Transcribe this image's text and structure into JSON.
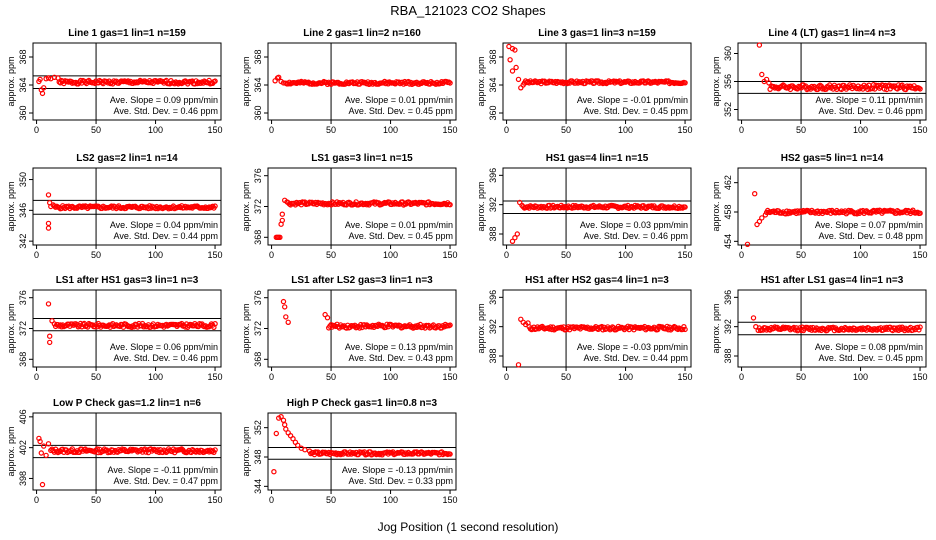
{
  "figure": {
    "title": "RBA_121023  CO2 Shapes",
    "xlabel": "Jog Position (1 second resolution)"
  },
  "chart_data": [
    {
      "type": "scatter",
      "title": "Line 1 gas=1 lin=1 n=159",
      "ylabel": "approx. ppm",
      "xlim": [
        -3,
        155
      ],
      "ylim": [
        359,
        370
      ],
      "xticks": [
        0,
        50,
        100,
        150
      ],
      "yticks": [
        360,
        364,
        368
      ],
      "hlines": [
        365.3,
        363.5
      ],
      "vline": 50,
      "base": 364.4,
      "noise": 0.25,
      "seed": 1,
      "slope_text": "Ave. Slope = 0.09  ppm/min",
      "std_text": "Ave. Std. Dev. = 0.46  ppm",
      "early": [
        [
          2,
          364.5
        ],
        [
          3,
          364.8
        ],
        [
          4,
          363.3
        ],
        [
          5,
          362.8
        ],
        [
          6,
          363.6
        ],
        [
          8,
          364.9
        ],
        [
          10,
          365.0
        ],
        [
          12,
          364.9
        ],
        [
          15,
          365.1
        ],
        [
          18,
          365.0
        ]
      ]
    },
    {
      "type": "scatter",
      "title": "Line 2 gas=1 lin=2 n=160",
      "ylabel": "approx. ppm",
      "xlim": [
        -3,
        155
      ],
      "ylim": [
        359,
        370
      ],
      "xticks": [
        0,
        50,
        100,
        150
      ],
      "yticks": [
        360,
        364,
        368
      ],
      "hlines": [],
      "vline": 50,
      "base": 364.3,
      "noise": 0.2,
      "seed": 2,
      "slope_text": "Ave. Slope = 0.01  ppm/min",
      "std_text": "Ave. Std. Dev. = 0.45  ppm",
      "early": [
        [
          3,
          364.6
        ],
        [
          5,
          365.0
        ],
        [
          6,
          365.1
        ],
        [
          8,
          364.5
        ],
        [
          10,
          364.3
        ]
      ]
    },
    {
      "type": "scatter",
      "title": "Line 3 gas=1 lin=3 n=159",
      "ylabel": "approx. ppm",
      "xlim": [
        -3,
        155
      ],
      "ylim": [
        359,
        370
      ],
      "xticks": [
        0,
        50,
        100,
        150
      ],
      "yticks": [
        360,
        364,
        368
      ],
      "hlines": [],
      "vline": 50,
      "base": 364.4,
      "noise": 0.2,
      "seed": 3,
      "slope_text": "Ave. Slope = -0.01  ppm/min",
      "std_text": "Ave. Std. Dev. = 0.45  ppm",
      "early": [
        [
          2,
          369.5
        ],
        [
          5,
          369.2
        ],
        [
          7,
          369.0
        ],
        [
          3,
          367.6
        ],
        [
          5,
          366.0
        ],
        [
          8,
          366.5
        ],
        [
          10,
          364.8
        ],
        [
          12,
          363.6
        ],
        [
          14,
          364.0
        ]
      ]
    },
    {
      "type": "scatter",
      "title": "Line 4 (LT) gas=1 lin=4 n=3",
      "ylabel": "approx. ppm",
      "xlim": [
        -3,
        155
      ],
      "ylim": [
        350.5,
        361.5
      ],
      "xticks": [
        0,
        50,
        100,
        150
      ],
      "yticks": [
        352,
        356,
        360
      ],
      "hlines": [
        356.0,
        354.3
      ],
      "vline": 50,
      "base": 355.2,
      "noise": 0.35,
      "seed": 4,
      "slope_text": "Ave. Slope = 0.11  ppm/min",
      "std_text": "Ave. Std. Dev. = 0.46  ppm",
      "early": [
        [
          15,
          361.2
        ],
        [
          17,
          357.0
        ],
        [
          19,
          356.0
        ],
        [
          21,
          356.3
        ],
        [
          23,
          355.8
        ]
      ]
    },
    {
      "type": "scatter",
      "title": "LS2 gas=2 lin=1 n=14",
      "ylabel": "approx. ppm",
      "xlim": [
        -3,
        155
      ],
      "ylim": [
        341.5,
        351.5
      ],
      "xticks": [
        0,
        50,
        100,
        150
      ],
      "yticks": [
        342,
        346,
        350
      ],
      "hlines": [
        347.3,
        345.5
      ],
      "vline": 50,
      "base": 346.4,
      "noise": 0.2,
      "seed": 5,
      "slope_text": "Ave. Slope = 0.04  ppm/min",
      "std_text": "Ave. Std. Dev. = 0.44  ppm",
      "early": [
        [
          10,
          348.0
        ],
        [
          11,
          347.0
        ],
        [
          10,
          344.3
        ],
        [
          10,
          343.7
        ],
        [
          12,
          346.5
        ],
        [
          14,
          346.7
        ]
      ]
    },
    {
      "type": "scatter",
      "title": "LS1 gas=3 lin=1 n=15",
      "ylabel": "approx. ppm",
      "xlim": [
        -3,
        155
      ],
      "ylim": [
        367,
        377
      ],
      "xticks": [
        0,
        50,
        100,
        150
      ],
      "yticks": [
        368,
        372,
        376
      ],
      "hlines": [],
      "vline": 50,
      "base": 372.4,
      "noise": 0.2,
      "seed": 6,
      "slope_text": "Ave. Slope = 0.01  ppm/min",
      "std_text": "Ave. Std. Dev. = 0.45  ppm",
      "early": [
        [
          4,
          368.0
        ],
        [
          5,
          368.0
        ],
        [
          6,
          368.0
        ],
        [
          7,
          368.0
        ],
        [
          8,
          369.7
        ],
        [
          9,
          370.2
        ],
        [
          9,
          371.0
        ],
        [
          11,
          372.8
        ],
        [
          13,
          372.6
        ]
      ]
    },
    {
      "type": "scatter",
      "title": "HS1 gas=4 lin=1 n=15",
      "ylabel": "approx. ppm",
      "xlim": [
        -3,
        155
      ],
      "ylim": [
        386.5,
        397
      ],
      "xticks": [
        0,
        50,
        100,
        150
      ],
      "yticks": [
        388,
        392,
        396
      ],
      "hlines": [
        392.5,
        390.8
      ],
      "vline": 50,
      "base": 391.7,
      "noise": 0.2,
      "seed": 7,
      "slope_text": "Ave. Slope = 0.03  ppm/min",
      "std_text": "Ave. Std. Dev. = 0.46  ppm",
      "early": [
        [
          5,
          387.0
        ],
        [
          7,
          387.5
        ],
        [
          9,
          388.0
        ],
        [
          11,
          392.3
        ],
        [
          13,
          391.9
        ]
      ]
    },
    {
      "type": "scatter",
      "title": "HS2 gas=5 lin=1 n=14",
      "ylabel": "approx. ppm",
      "xlim": [
        -3,
        155
      ],
      "ylim": [
        453.5,
        464
      ],
      "xticks": [
        0,
        50,
        100,
        150
      ],
      "yticks": [
        454,
        458,
        462
      ],
      "hlines": [],
      "vline": 50,
      "base": 458.0,
      "noise": 0.25,
      "seed": 8,
      "slope_text": "Ave. Slope = 0.07  ppm/min",
      "std_text": "Ave. Std. Dev. = 0.48  ppm",
      "early": [
        [
          5,
          453.6
        ],
        [
          11,
          460.5
        ],
        [
          13,
          456.3
        ],
        [
          15,
          456.7
        ],
        [
          17,
          457.2
        ],
        [
          20,
          457.6
        ]
      ]
    },
    {
      "type": "scatter",
      "title": "LS1 after HS1 gas=3 lin=1 n=3",
      "ylabel": "approx. ppm",
      "xlim": [
        -3,
        155
      ],
      "ylim": [
        367,
        377
      ],
      "xticks": [
        0,
        50,
        100,
        150
      ],
      "yticks": [
        368,
        372,
        376
      ],
      "hlines": [
        373.3,
        371.7
      ],
      "vline": 50,
      "base": 372.4,
      "noise": 0.25,
      "seed": 9,
      "slope_text": "Ave. Slope = 0.06  ppm/min",
      "std_text": "Ave. Std. Dev. = 0.46  ppm",
      "early": [
        [
          10,
          375.2
        ],
        [
          11,
          371.0
        ],
        [
          11,
          370.2
        ],
        [
          13,
          373.0
        ],
        [
          15,
          372.6
        ]
      ]
    },
    {
      "type": "scatter",
      "title": "LS1 after LS2 gas=3 lin=1 n=3",
      "ylabel": "approx. ppm",
      "xlim": [
        -3,
        155
      ],
      "ylim": [
        367,
        377
      ],
      "xticks": [
        0,
        50,
        100,
        150
      ],
      "yticks": [
        368,
        372,
        376
      ],
      "hlines": [],
      "vline": 50,
      "base": 372.3,
      "noise": 0.25,
      "seed": 10,
      "slope_text": "Ave. Slope = 0.13  ppm/min",
      "std_text": "Ave. Std. Dev. = 0.43  ppm",
      "early": [
        [
          10,
          375.5
        ],
        [
          11,
          374.8
        ],
        [
          12,
          373.5
        ],
        [
          14,
          372.8
        ],
        [
          45,
          373.8
        ],
        [
          47,
          373.4
        ]
      ]
    },
    {
      "type": "scatter",
      "title": "HS1 after HS2 gas=4 lin=1 n=3",
      "ylabel": "approx. ppm",
      "xlim": [
        -3,
        155
      ],
      "ylim": [
        386.5,
        397
      ],
      "xticks": [
        0,
        50,
        100,
        150
      ],
      "yticks": [
        388,
        392,
        396
      ],
      "hlines": [],
      "vline": 50,
      "base": 391.8,
      "noise": 0.25,
      "seed": 11,
      "slope_text": "Ave. Slope = -0.03  ppm/min",
      "std_text": "Ave. Std. Dev. = 0.44  ppm",
      "early": [
        [
          10,
          386.8
        ],
        [
          12,
          393.0
        ],
        [
          14,
          392.6
        ],
        [
          16,
          392.3
        ],
        [
          18,
          392.5
        ]
      ]
    },
    {
      "type": "scatter",
      "title": "HS1 after LS1 gas=4 lin=1 n=3",
      "ylabel": "approx. ppm",
      "xlim": [
        -3,
        155
      ],
      "ylim": [
        386.5,
        397
      ],
      "xticks": [
        0,
        50,
        100,
        150
      ],
      "yticks": [
        388,
        392,
        396
      ],
      "hlines": [
        392.6,
        390.9
      ],
      "vline": 50,
      "base": 391.7,
      "noise": 0.25,
      "seed": 12,
      "slope_text": "Ave. Slope = 0.08  ppm/min",
      "std_text": "Ave. Std. Dev. = 0.45  ppm",
      "early": [
        [
          10,
          393.2
        ],
        [
          12,
          392.0
        ],
        [
          14,
          391.5
        ]
      ]
    },
    {
      "type": "scatter",
      "title": "Low P Check gas=1.2 lin=1 n=6",
      "ylabel": "approx. ppm",
      "xlim": [
        -3,
        155
      ],
      "ylim": [
        396.5,
        406.5
      ],
      "xticks": [
        0,
        50,
        100,
        150
      ],
      "yticks": [
        398,
        402,
        406
      ],
      "hlines": [
        402.3,
        400.7
      ],
      "vline": 50,
      "base": 401.6,
      "noise": 0.25,
      "seed": 13,
      "slope_text": "Ave. Slope = -0.11  ppm/min",
      "std_text": "Ave. Std. Dev. = 0.47  ppm",
      "early": [
        [
          2,
          403.2
        ],
        [
          3,
          402.8
        ],
        [
          4,
          401.3
        ],
        [
          5,
          397.2
        ],
        [
          6,
          402.2
        ],
        [
          8,
          401.0
        ],
        [
          10,
          402.5
        ]
      ]
    },
    {
      "type": "scatter",
      "title": "High P Check gas=1 lin=0.8 n=3",
      "ylabel": "approx. ppm",
      "xlim": [
        -3,
        155
      ],
      "ylim": [
        343.5,
        354
      ],
      "xticks": [
        0,
        50,
        100,
        150
      ],
      "yticks": [
        344,
        348,
        352
      ],
      "hlines": [
        349.3,
        347.7
      ],
      "vline": 50,
      "base": 348.5,
      "noise": 0.2,
      "seed": 14,
      "slope_text": "Ave. Slope = -0.13  ppm/min",
      "std_text": "Ave. Std. Dev. = 0.33  ppm",
      "early": [
        [
          2,
          346.0
        ],
        [
          4,
          351.2
        ],
        [
          6,
          353.3
        ],
        [
          8,
          353.5
        ],
        [
          10,
          353.0
        ],
        [
          11,
          352.4
        ],
        [
          12,
          351.8
        ],
        [
          14,
          351.3
        ],
        [
          16,
          350.9
        ],
        [
          18,
          350.5
        ],
        [
          20,
          350.0
        ],
        [
          22,
          349.6
        ],
        [
          25,
          349.2
        ],
        [
          28,
          349.0
        ],
        [
          32,
          348.8
        ]
      ]
    }
  ]
}
